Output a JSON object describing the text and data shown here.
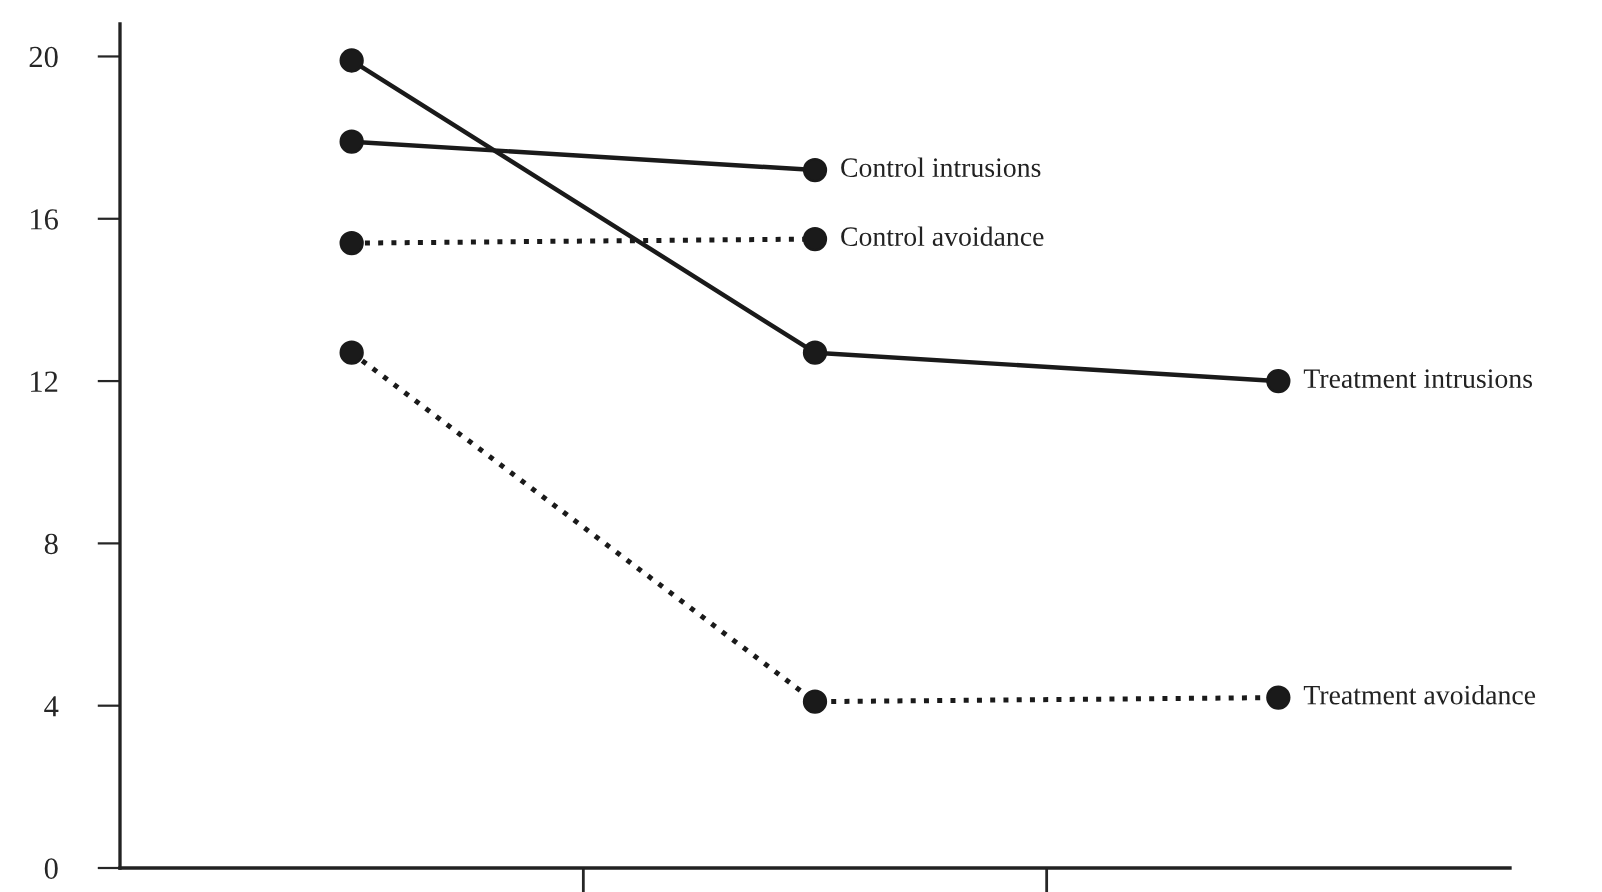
{
  "chart_data": {
    "type": "line",
    "categories": [
      null,
      null,
      null
    ],
    "series": [
      {
        "name": "Control intrusions",
        "color": "#1a1a1a",
        "line_style": "solid",
        "values": [
          17.9,
          17.2,
          null
        ]
      },
      {
        "name": "Control avoidance",
        "color": "#1a1a1a",
        "line_style": "dotted",
        "values": [
          15.4,
          15.5,
          null
        ]
      },
      {
        "name": "Treatment intrusions",
        "color": "#1a1a1a",
        "line_style": "solid",
        "values": [
          19.9,
          12.7,
          12.0
        ]
      },
      {
        "name": "Treatment avoidance",
        "color": "#1a1a1a",
        "line_style": "dotted",
        "values": [
          12.7,
          4.1,
          4.2
        ]
      }
    ],
    "ylim": [
      0,
      20.8
    ],
    "yticks": [
      0,
      4,
      8,
      12,
      16,
      20
    ],
    "marker": "circle",
    "grid": false,
    "legend": false
  }
}
